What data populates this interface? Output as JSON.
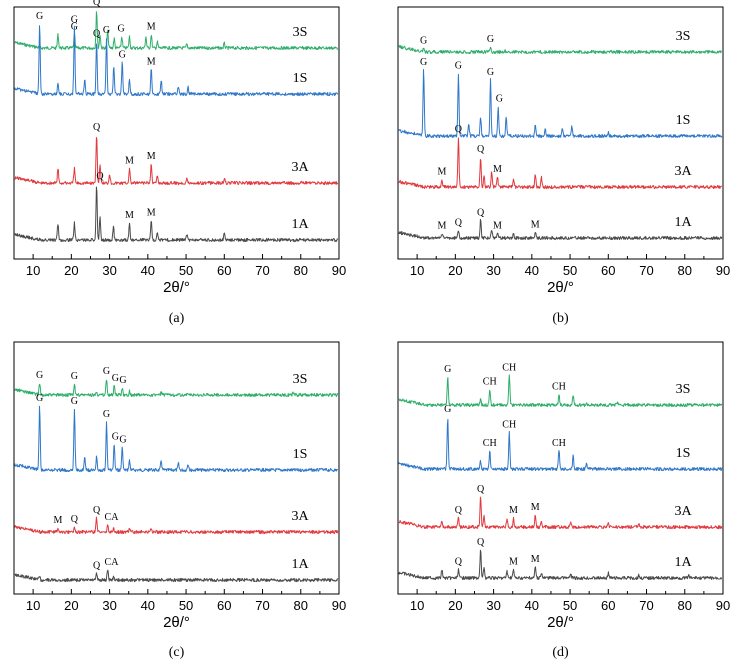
{
  "figure": {
    "x_label": "2θ/°",
    "x_ticks": [
      10,
      20,
      30,
      40,
      50,
      60,
      70,
      80,
      90
    ],
    "colors": {
      "3S": "#2fae6a",
      "1S": "#2f77c8",
      "3A": "#e0393e",
      "1A": "#4a4a4a"
    }
  },
  "chart_data": [
    {
      "type": "line",
      "panel": "a",
      "caption": "(a)",
      "xlabel": "2θ/°",
      "xlim": [
        5,
        90
      ],
      "series": [
        {
          "name": "3S",
          "peaks": [
            [
              16.5,
              0.35
            ],
            [
              20.8,
              0.35
            ],
            [
              26.6,
              1.0
            ],
            [
              27.5,
              0.35
            ],
            [
              29.5,
              0.45
            ],
            [
              31.2,
              0.25
            ],
            [
              33.2,
              0.3
            ],
            [
              35.2,
              0.3
            ],
            [
              39.5,
              0.3
            ],
            [
              40.9,
              0.35
            ],
            [
              42.5,
              0.15
            ],
            [
              50.2,
              0.1
            ],
            [
              60.0,
              0.12
            ]
          ],
          "annotations": [
            {
              "text": "G",
              "x": 20.8
            },
            {
              "text": "Q",
              "x": 26.6
            },
            {
              "text": "G",
              "x": 33.0
            },
            {
              "text": "M",
              "x": 40.9
            }
          ]
        },
        {
          "name": "1S",
          "peaks": [
            [
              11.7,
              1.0
            ],
            [
              16.5,
              0.15
            ],
            [
              20.8,
              0.95
            ],
            [
              23.5,
              0.2
            ],
            [
              26.6,
              0.75
            ],
            [
              29.2,
              0.8
            ],
            [
              31.1,
              0.4
            ],
            [
              33.3,
              0.45
            ],
            [
              35.2,
              0.2
            ],
            [
              40.9,
              0.35
            ],
            [
              43.5,
              0.2
            ],
            [
              48.0,
              0.1
            ],
            [
              50.5,
              0.1
            ]
          ],
          "annotations": [
            {
              "text": "G",
              "x": 11.7
            },
            {
              "text": "G",
              "x": 20.8
            },
            {
              "text": "Q",
              "x": 26.6
            },
            {
              "text": "G",
              "x": 29.2
            },
            {
              "text": "G",
              "x": 33.3
            },
            {
              "text": "M",
              "x": 40.9
            }
          ]
        },
        {
          "name": "3A",
          "peaks": [
            [
              16.5,
              0.3
            ],
            [
              20.8,
              0.3
            ],
            [
              26.6,
              1.0
            ],
            [
              27.5,
              0.35
            ],
            [
              30.0,
              0.2
            ],
            [
              35.2,
              0.3
            ],
            [
              40.9,
              0.4
            ],
            [
              42.5,
              0.15
            ],
            [
              50.2,
              0.1
            ],
            [
              60.0,
              0.1
            ]
          ],
          "annotations": [
            {
              "text": "Q",
              "x": 26.6
            },
            {
              "text": "M",
              "x": 35.2
            },
            {
              "text": "M",
              "x": 40.9
            }
          ]
        },
        {
          "name": "1A",
          "peaks": [
            [
              16.5,
              0.3
            ],
            [
              20.8,
              0.3
            ],
            [
              26.6,
              1.0
            ],
            [
              27.5,
              0.4
            ],
            [
              31.0,
              0.25
            ],
            [
              35.2,
              0.3
            ],
            [
              40.9,
              0.35
            ],
            [
              42.5,
              0.15
            ],
            [
              50.2,
              0.1
            ],
            [
              60.0,
              0.12
            ]
          ],
          "annotations": [
            {
              "text": "Q",
              "x": 27.5
            },
            {
              "text": "M",
              "x": 35.2
            },
            {
              "text": "M",
              "x": 40.9
            }
          ]
        }
      ]
    },
    {
      "type": "line",
      "panel": "b",
      "caption": "(b)",
      "xlabel": "2θ/°",
      "xlim": [
        5,
        90
      ],
      "series": [
        {
          "name": "3S",
          "peaks": [
            [
              11.7,
              0.25
            ],
            [
              29.2,
              0.35
            ],
            [
              33.0,
              0.1
            ]
          ],
          "annotations": [
            {
              "text": "G",
              "x": 11.7
            },
            {
              "text": "G",
              "x": 29.2
            }
          ]
        },
        {
          "name": "1S",
          "peaks": [
            [
              11.7,
              1.0
            ],
            [
              20.8,
              0.95
            ],
            [
              23.5,
              0.2
            ],
            [
              26.6,
              0.3
            ],
            [
              29.2,
              0.85
            ],
            [
              31.2,
              0.45
            ],
            [
              33.3,
              0.3
            ],
            [
              40.9,
              0.15
            ],
            [
              43.5,
              0.12
            ],
            [
              48.0,
              0.12
            ],
            [
              50.5,
              0.15
            ],
            [
              60.0,
              0.05
            ]
          ],
          "annotations": [
            {
              "text": "G",
              "x": 11.7
            },
            {
              "text": "G",
              "x": 20.8
            },
            {
              "text": "G",
              "x": 29.2
            },
            {
              "text": "G",
              "x": 31.5
            }
          ]
        },
        {
          "name": "3A",
          "peaks": [
            [
              16.5,
              0.15
            ],
            [
              20.8,
              1.0
            ],
            [
              26.6,
              0.6
            ],
            [
              27.5,
              0.25
            ],
            [
              29.5,
              0.3
            ],
            [
              31.0,
              0.2
            ],
            [
              35.2,
              0.15
            ],
            [
              40.9,
              0.25
            ],
            [
              42.5,
              0.2
            ]
          ],
          "annotations": [
            {
              "text": "M",
              "x": 16.5
            },
            {
              "text": "Q",
              "x": 20.8
            },
            {
              "text": "Q",
              "x": 26.6
            },
            {
              "text": "M",
              "x": 31.0
            }
          ]
        },
        {
          "name": "1A",
          "peaks": [
            [
              16.5,
              0.2
            ],
            [
              20.8,
              0.35
            ],
            [
              26.6,
              0.8
            ],
            [
              29.5,
              0.35
            ],
            [
              31.0,
              0.2
            ],
            [
              35.2,
              0.2
            ],
            [
              40.9,
              0.25
            ]
          ],
          "annotations": [
            {
              "text": "M",
              "x": 16.5
            },
            {
              "text": "Q",
              "x": 20.8
            },
            {
              "text": "Q",
              "x": 26.6
            },
            {
              "text": "M",
              "x": 31.0
            },
            {
              "text": "M",
              "x": 40.9
            }
          ]
        }
      ]
    },
    {
      "type": "line",
      "panel": "c",
      "caption": "(c)",
      "xlabel": "2θ/°",
      "xlim": [
        5,
        90
      ],
      "series": [
        {
          "name": "3S",
          "peaks": [
            [
              11.7,
              0.6
            ],
            [
              20.8,
              0.55
            ],
            [
              26.6,
              0.2
            ],
            [
              29.2,
              0.8
            ],
            [
              31.2,
              0.45
            ],
            [
              33.3,
              0.35
            ],
            [
              35.2,
              0.2
            ],
            [
              43.5,
              0.15
            ],
            [
              48.0,
              0.1
            ],
            [
              78.0,
              0.08
            ]
          ],
          "annotations": [
            {
              "text": "G",
              "x": 11.7
            },
            {
              "text": "G",
              "x": 20.8
            },
            {
              "text": "G",
              "x": 29.2
            },
            {
              "text": "G",
              "x": 31.5
            },
            {
              "text": "G",
              "x": 33.5
            }
          ]
        },
        {
          "name": "1S",
          "peaks": [
            [
              11.7,
              1.0
            ],
            [
              20.8,
              0.95
            ],
            [
              23.5,
              0.2
            ],
            [
              26.6,
              0.2
            ],
            [
              29.2,
              0.75
            ],
            [
              31.2,
              0.4
            ],
            [
              33.3,
              0.35
            ],
            [
              35.2,
              0.15
            ],
            [
              43.5,
              0.15
            ],
            [
              48.0,
              0.1
            ],
            [
              50.5,
              0.1
            ]
          ],
          "annotations": [
            {
              "text": "G",
              "x": 11.7
            },
            {
              "text": "G",
              "x": 20.8
            },
            {
              "text": "G",
              "x": 29.2
            },
            {
              "text": "G",
              "x": 31.5
            },
            {
              "text": "G",
              "x": 33.5
            }
          ]
        },
        {
          "name": "3A",
          "peaks": [
            [
              16.5,
              0.2
            ],
            [
              20.8,
              0.25
            ],
            [
              26.6,
              0.7
            ],
            [
              29.5,
              0.35
            ],
            [
              31.0,
              0.2
            ],
            [
              35.2,
              0.15
            ],
            [
              40.9,
              0.15
            ]
          ],
          "annotations": [
            {
              "text": "M",
              "x": 16.5
            },
            {
              "text": "Q",
              "x": 20.8
            },
            {
              "text": "Q",
              "x": 26.6
            },
            {
              "text": "CA",
              "x": 30.5
            }
          ]
        },
        {
          "name": "1A",
          "peaks": [
            [
              11.7,
              0.15
            ],
            [
              26.6,
              0.35
            ],
            [
              29.5,
              0.55
            ],
            [
              31.0,
              0.15
            ]
          ],
          "annotations": [
            {
              "text": "Q",
              "x": 26.6
            },
            {
              "text": "CA",
              "x": 30.5
            }
          ]
        }
      ]
    },
    {
      "type": "line",
      "panel": "d",
      "caption": "(d)",
      "xlabel": "2θ/°",
      "xlim": [
        5,
        90
      ],
      "series": [
        {
          "name": "3S",
          "peaks": [
            [
              18.0,
              0.8
            ],
            [
              26.6,
              0.15
            ],
            [
              29.0,
              0.45
            ],
            [
              34.1,
              0.85
            ],
            [
              47.1,
              0.3
            ],
            [
              50.8,
              0.25
            ],
            [
              54.3,
              0.1
            ],
            [
              62.5,
              0.08
            ]
          ],
          "annotations": [
            {
              "text": "G",
              "x": 18.0
            },
            {
              "text": "CH",
              "x": 29.0
            },
            {
              "text": "CH",
              "x": 34.1
            },
            {
              "text": "CH",
              "x": 47.1
            }
          ]
        },
        {
          "name": "1S",
          "peaks": [
            [
              18.0,
              1.0
            ],
            [
              26.6,
              0.15
            ],
            [
              29.0,
              0.35
            ],
            [
              34.1,
              0.7
            ],
            [
              47.1,
              0.35
            ],
            [
              50.8,
              0.25
            ],
            [
              54.3,
              0.1
            ]
          ],
          "annotations": [
            {
              "text": "G",
              "x": 18.0
            },
            {
              "text": "CH",
              "x": 29.0
            },
            {
              "text": "CH",
              "x": 34.1
            },
            {
              "text": "CH",
              "x": 47.1
            }
          ]
        },
        {
          "name": "3A",
          "peaks": [
            [
              16.5,
              0.2
            ],
            [
              20.8,
              0.3
            ],
            [
              26.6,
              1.0
            ],
            [
              27.5,
              0.4
            ],
            [
              33.5,
              0.25
            ],
            [
              35.2,
              0.3
            ],
            [
              40.9,
              0.4
            ],
            [
              42.5,
              0.2
            ],
            [
              50.2,
              0.15
            ],
            [
              60.0,
              0.15
            ],
            [
              68.0,
              0.1
            ]
          ],
          "annotations": [
            {
              "text": "Q",
              "x": 20.8
            },
            {
              "text": "Q",
              "x": 26.6
            },
            {
              "text": "M",
              "x": 35.2
            },
            {
              "text": "M",
              "x": 40.9
            }
          ]
        },
        {
          "name": "1A",
          "peaks": [
            [
              16.5,
              0.3
            ],
            [
              20.8,
              0.3
            ],
            [
              26.6,
              1.0
            ],
            [
              27.5,
              0.4
            ],
            [
              33.5,
              0.25
            ],
            [
              35.2,
              0.3
            ],
            [
              40.9,
              0.4
            ],
            [
              42.5,
              0.2
            ],
            [
              50.2,
              0.15
            ],
            [
              60.0,
              0.2
            ],
            [
              68.0,
              0.1
            ],
            [
              81.0,
              0.1
            ]
          ],
          "annotations": [
            {
              "text": "Q",
              "x": 20.8
            },
            {
              "text": "Q",
              "x": 26.6
            },
            {
              "text": "M",
              "x": 35.2
            },
            {
              "text": "M",
              "x": 40.9
            }
          ]
        }
      ]
    }
  ]
}
